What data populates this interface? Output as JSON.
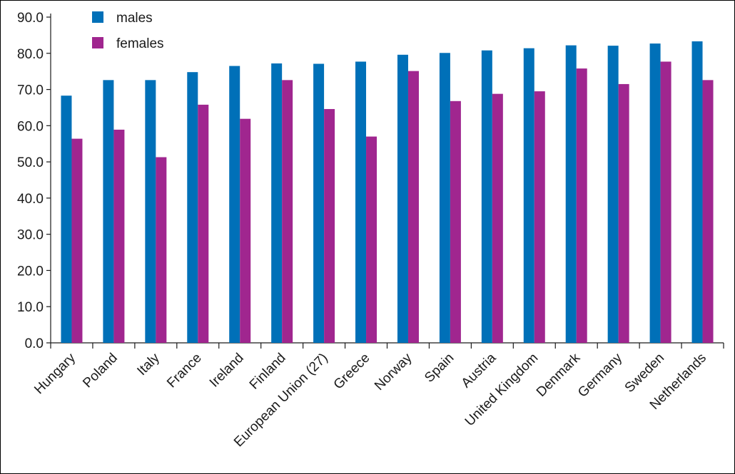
{
  "chart_data": {
    "type": "bar",
    "categories": [
      "Hungary",
      "Poland",
      "Italy",
      "France",
      "Ireland",
      "Finland",
      "European Union (27)",
      "Greece",
      "Norway",
      "Spain",
      "Austria",
      "United Kingdom",
      "Denmark",
      "Germany",
      "Sweden",
      "Netherlands"
    ],
    "series": [
      {
        "name": "males",
        "color": "#0070b8",
        "values": [
          68.3,
          72.6,
          72.6,
          74.8,
          76.5,
          77.2,
          77.1,
          77.7,
          79.6,
          80.1,
          80.8,
          81.4,
          82.2,
          82.1,
          82.7,
          83.3
        ]
      },
      {
        "name": "females",
        "color": "#a0268f",
        "values": [
          56.4,
          58.9,
          51.3,
          65.8,
          61.9,
          72.6,
          64.6,
          57.0,
          75.1,
          66.8,
          68.8,
          69.5,
          75.8,
          71.5,
          77.7,
          72.6
        ]
      }
    ],
    "yticks": [
      "0.0",
      "10.0",
      "20.0",
      "30.0",
      "40.0",
      "50.0",
      "60.0",
      "70.0",
      "80.0",
      "90.0"
    ],
    "ylim": [
      0,
      90
    ],
    "legend_position": "top-left",
    "grid": false
  }
}
